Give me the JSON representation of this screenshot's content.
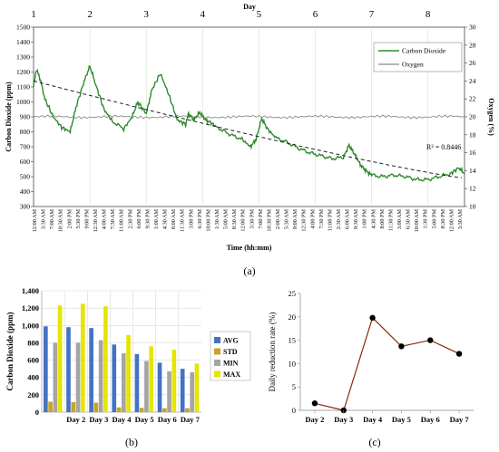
{
  "panel_labels": {
    "a": "(a)",
    "b": "(b)",
    "c": "(c)"
  },
  "chart_data": [
    {
      "type": "line",
      "id": "a",
      "xlabel": "Time (hh:mm)",
      "ylabel": "Carbon Dioxide (ppm)",
      "y2label": "Oxygen (%)",
      "top_axis_label": "Day",
      "day_markers": [
        "1",
        "2",
        "3",
        "4",
        "5",
        "6",
        "7",
        "8"
      ],
      "ylim": [
        300,
        1500
      ],
      "y_ticks": [
        300,
        400,
        500,
        600,
        700,
        800,
        900,
        1000,
        1100,
        1200,
        1300,
        1400,
        1500
      ],
      "y2lim": [
        10,
        30
      ],
      "y2_ticks": [
        10,
        12,
        14,
        16,
        18,
        20,
        22,
        24,
        26,
        28,
        30
      ],
      "x_ticks": [
        "12:00 AM",
        "3:30 AM",
        "7:00 AM",
        "10:30 AM",
        "2:00 PM",
        "5:30 PM",
        "9:00 PM",
        "12:30 AM",
        "4:00 AM",
        "7:30 AM",
        "11:00 AM",
        "2:30 PM",
        "6:00 PM",
        "9:30 PM",
        "1:00 AM",
        "4:30 AM",
        "8:00 AM",
        "11:30 AM",
        "3:00 PM",
        "6:30 PM",
        "10:00 PM",
        "1:30 AM",
        "5:00 AM",
        "8:30 AM",
        "12:00 PM",
        "3:30 PM",
        "7:00 PM",
        "10:30 PM",
        "2:00 AM",
        "5:30 AM",
        "9:00 AM",
        "12:30 PM",
        "4:00 PM",
        "7:30 PM",
        "11:00 PM",
        "2:30 AM",
        "6:00 AM",
        "9:30 AM",
        "1:00 PM",
        "4:30 PM",
        "8:00 PM",
        "11:30 PM",
        "3:00 AM",
        "6:30 AM",
        "10:00 AM",
        "1:30 PM",
        "5:00 PM",
        "8:30 PM",
        "12:00 AM",
        "3:30 AM"
      ],
      "legend_position": "top-right",
      "grid": "vertical day lines",
      "trendline": {
        "style": "dashed",
        "r2_label": "R² = 0.8446",
        "start": 1140,
        "end": 490
      },
      "series": [
        {
          "name": "Carbon Dioxide",
          "color": "#2e8b2e",
          "axis": "left",
          "x_day": [
            0,
            0.05,
            0.12,
            0.2,
            0.35,
            0.5,
            0.65,
            0.75,
            0.9,
            1.0,
            1.1,
            1.25,
            1.4,
            1.6,
            1.75,
            1.85,
            2.0,
            2.1,
            2.25,
            2.4,
            2.55,
            2.7,
            2.75,
            2.85,
            2.95,
            3.05,
            3.15,
            3.3,
            3.5,
            3.7,
            3.85,
            3.95,
            4.05,
            4.15,
            4.3,
            4.5,
            4.7,
            4.9,
            5.1,
            5.3,
            5.5,
            5.6,
            5.7,
            5.8,
            5.9,
            6.0,
            6.2,
            6.4,
            6.6,
            6.8,
            7.0,
            7.2,
            7.4,
            7.55,
            7.65
          ],
          "values": [
            1100,
            1220,
            1150,
            1020,
            900,
            830,
            800,
            960,
            1140,
            1240,
            1120,
            950,
            870,
            820,
            900,
            1000,
            920,
            1080,
            1190,
            1050,
            880,
            850,
            920,
            880,
            930,
            880,
            860,
            820,
            780,
            750,
            700,
            750,
            890,
            820,
            760,
            730,
            690,
            660,
            640,
            620,
            630,
            710,
            650,
            580,
            540,
            510,
            500,
            510,
            500,
            480,
            480,
            500,
            520,
            560,
            520
          ]
        },
        {
          "name": "Oxygen",
          "color": "#8a8a8a",
          "axis": "right",
          "x_day": [
            0,
            7.65
          ],
          "values": [
            20.0,
            20.0
          ]
        }
      ]
    },
    {
      "type": "bar",
      "id": "b",
      "ylabel": "Carbon Dioxide (ppm)",
      "ylim": [
        0,
        1400
      ],
      "y_ticks": [
        0,
        200,
        400,
        600,
        800,
        1000,
        1200,
        1400
      ],
      "categories": [
        "",
        "Day 2",
        "Day 3",
        "Day 4",
        "Day 5",
        "Day 6",
        "Day 7"
      ],
      "legend_position": "right",
      "series": [
        {
          "name": "AVG",
          "color": "#4472c4",
          "values": [
            990,
            980,
            970,
            780,
            670,
            570,
            500
          ]
        },
        {
          "name": "STD",
          "color": "#c9a227",
          "values": [
            120,
            115,
            110,
            55,
            50,
            45,
            45
          ]
        },
        {
          "name": "MIN",
          "color": "#a5a5a5",
          "values": [
            800,
            800,
            830,
            680,
            590,
            470,
            460
          ]
        },
        {
          "name": "MAX",
          "color": "#e5e500",
          "values": [
            1230,
            1250,
            1220,
            890,
            760,
            720,
            560
          ]
        }
      ]
    },
    {
      "type": "line",
      "id": "c",
      "ylabel": "Daily reduction rate (%)",
      "ylim": [
        0,
        25
      ],
      "y_ticks": [
        0,
        5,
        10,
        15,
        20,
        25
      ],
      "categories": [
        "Day 2",
        "Day 3",
        "Day 4",
        "Day 5",
        "Day 6",
        "Day 7"
      ],
      "line_color": "#8b2a0a",
      "marker_color": "#000000",
      "values": [
        1.5,
        0,
        19.8,
        13.7,
        15.0,
        12.1
      ]
    }
  ]
}
